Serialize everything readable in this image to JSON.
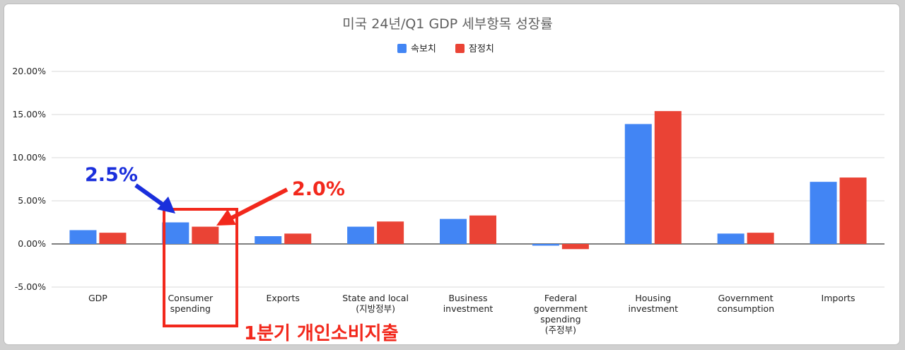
{
  "chart_data": {
    "type": "bar",
    "title": "미국 24년/Q1 GDP 세부항목 성장률",
    "categories": [
      [
        "GDP"
      ],
      [
        "Consumer",
        "spending"
      ],
      [
        "Exports"
      ],
      [
        "State and local",
        "(지방정부)"
      ],
      [
        "Business",
        "investment"
      ],
      [
        "Federal",
        "government",
        "spending",
        "(주정부)"
      ],
      [
        "Housing",
        "investment"
      ],
      [
        "Government",
        "consumption"
      ],
      [
        "Imports"
      ]
    ],
    "series": [
      {
        "name": "속보치",
        "color": "#4285f4",
        "values": [
          1.6,
          2.5,
          0.9,
          2.0,
          2.9,
          -0.2,
          13.9,
          1.2,
          7.2
        ]
      },
      {
        "name": "잠정치",
        "color": "#ea4335",
        "values": [
          1.3,
          2.0,
          1.2,
          2.6,
          3.3,
          -0.6,
          15.4,
          1.3,
          7.7
        ]
      }
    ],
    "yticks": [
      "20.00%",
      "15.00%",
      "10.00%",
      "5.00%",
      "0.00%",
      "-5.00%"
    ],
    "ylim": [
      -5,
      20
    ],
    "legend_position": "top-center",
    "grid": true,
    "annotations": {
      "blue_label": "2.5%",
      "red_label": "2.0%",
      "caption": "1분기 개인소비지출"
    }
  }
}
